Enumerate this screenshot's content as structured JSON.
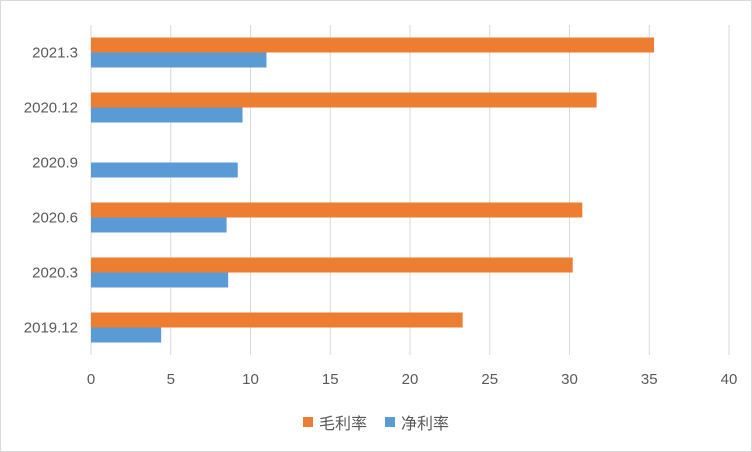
{
  "chart_data": {
    "type": "bar",
    "orientation": "horizontal",
    "categories": [
      "2019.12",
      "2020.3",
      "2020.6",
      "2020.9",
      "2020.12",
      "2021.3"
    ],
    "series": [
      {
        "name": "毛利率",
        "color": "#ed7d31",
        "values": [
          23.3,
          30.2,
          30.8,
          null,
          31.7,
          35.3
        ]
      },
      {
        "name": "净利率",
        "color": "#5b9bd5",
        "values": [
          4.4,
          8.6,
          8.5,
          9.2,
          9.5,
          11.0
        ]
      }
    ],
    "xlim": [
      0,
      40
    ],
    "xticks": [
      0,
      5,
      10,
      15,
      20,
      25,
      30,
      35,
      40
    ],
    "grid": true,
    "legend_position": "bottom"
  }
}
